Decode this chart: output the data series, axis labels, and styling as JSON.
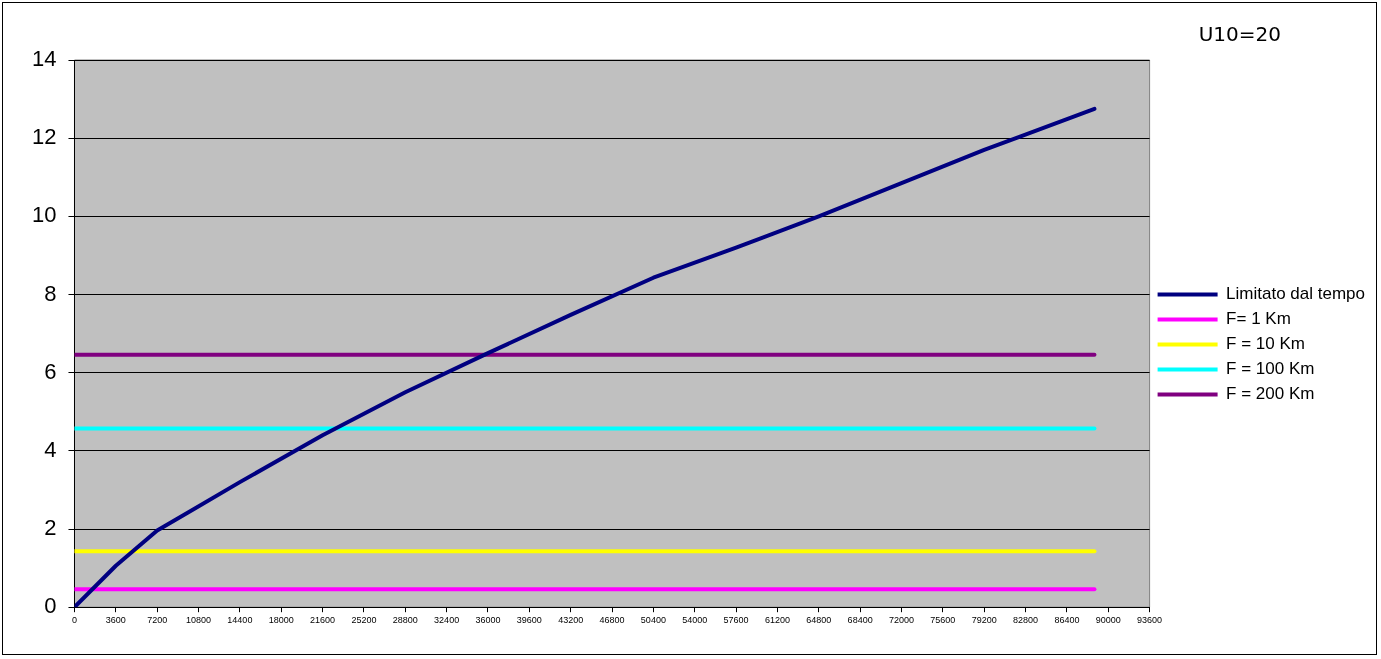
{
  "chart_data": {
    "type": "line",
    "annotations": [
      "U10=20"
    ],
    "xlim": [
      0,
      93600
    ],
    "xticks": [
      0,
      3600,
      7200,
      10800,
      14400,
      18000,
      21600,
      25200,
      28800,
      32400,
      36000,
      39600,
      43200,
      46800,
      50400,
      54000,
      57600,
      61200,
      64800,
      68400,
      72000,
      75600,
      79200,
      82800,
      86400,
      90000,
      93600
    ],
    "ylim": [
      0,
      14
    ],
    "yticks": [
      0,
      2,
      4,
      6,
      8,
      10,
      12,
      14
    ],
    "grid": "y",
    "legend": "right",
    "marker": "none",
    "line_style": "solid",
    "series": [
      {
        "name": "Limitato dal tempo",
        "color": "#000080",
        "x": [
          0,
          3600,
          7200,
          14400,
          21600,
          28800,
          36000,
          43200,
          50400,
          57600,
          64800,
          72000,
          79200,
          88800
        ],
        "values": [
          0,
          1.06,
          1.96,
          3.2,
          4.4,
          5.5,
          6.5,
          7.48,
          8.43,
          9.2,
          10.0,
          10.85,
          11.7,
          12.75
        ]
      },
      {
        "name": "F= 1 Km",
        "color": "#ff00ff",
        "x": [
          0,
          88800
        ],
        "values": [
          0.46,
          0.46
        ]
      },
      {
        "name": "F = 10 Km",
        "color": "#ffff00",
        "x": [
          0,
          88800
        ],
        "values": [
          1.43,
          1.43
        ]
      },
      {
        "name": "F = 100 Km",
        "color": "#00ffff",
        "x": [
          0,
          88800
        ],
        "values": [
          4.57,
          4.57
        ]
      },
      {
        "name": "F = 200 Km",
        "color": "#800080",
        "x": [
          0,
          88800
        ],
        "values": [
          6.46,
          6.46
        ]
      }
    ]
  }
}
